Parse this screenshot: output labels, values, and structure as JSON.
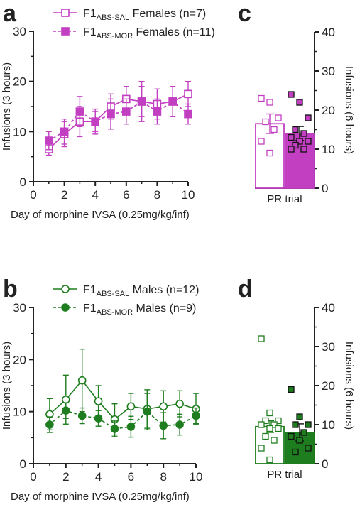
{
  "figure": {
    "panel_letters": [
      "a",
      "b",
      "c",
      "d"
    ]
  },
  "chart_data": [
    {
      "id": "a",
      "type": "line",
      "xlabel": "Day of morphine IVSA (0.25mg/kg/inf)",
      "ylabel": "Infusions (3 hours)",
      "xlim": [
        0,
        10
      ],
      "ylim": [
        0,
        30
      ],
      "x_ticks": [
        0,
        2,
        4,
        6,
        8,
        10
      ],
      "y_ticks": [
        0,
        10,
        20,
        30
      ],
      "legend_position": "top-left",
      "x": [
        1,
        2,
        3,
        4,
        5,
        6,
        7,
        8,
        9,
        10
      ],
      "series": [
        {
          "name": "F1ABS-SAL Females (n=7)",
          "name_parts": [
            "F1",
            "ABS-SAL",
            " Females (n=7)"
          ],
          "color": "#c23fc2",
          "marker": "open-square",
          "line": "solid",
          "values": [
            6.5,
            9.5,
            12,
            12,
            15,
            16.5,
            16,
            15.5,
            16,
            17.5
          ],
          "errors": [
            1.2,
            2.5,
            3,
            2.5,
            2.5,
            2.5,
            4,
            3,
            3,
            2.5
          ]
        },
        {
          "name": "F1ABS-MOR Females (n=11)",
          "name_parts": [
            "F1",
            "ABS-MOR",
            " Females (n=11)"
          ],
          "color": "#c23fc2",
          "marker": "filled-square",
          "line": "dashed",
          "values": [
            8.2,
            10,
            14,
            12,
            13.5,
            14,
            16,
            14,
            16,
            13.5
          ],
          "errors": [
            1.8,
            2.5,
            3,
            2,
            3,
            2.5,
            3,
            2.5,
            3,
            2
          ]
        }
      ]
    },
    {
      "id": "b",
      "type": "line",
      "xlabel": "Day of morphine IVSA (0.25mg/kg/inf)",
      "ylabel": "Infusions (3 hours)",
      "xlim": [
        0,
        10
      ],
      "ylim": [
        0,
        30
      ],
      "x_ticks": [
        0,
        2,
        4,
        6,
        8,
        10
      ],
      "y_ticks": [
        0,
        10,
        20,
        30
      ],
      "legend_position": "top-left",
      "x": [
        1,
        2,
        3,
        4,
        5,
        6,
        7,
        8,
        9,
        10
      ],
      "series": [
        {
          "name": "F1ABS-SAL Males (n=12)",
          "name_parts": [
            "F1",
            "ABS-SAL",
            " Males (n=12)"
          ],
          "color": "#1e7d1e",
          "marker": "open-circle",
          "line": "solid",
          "values": [
            9.5,
            12.3,
            16,
            12,
            8.5,
            11,
            10.5,
            11,
            11.5,
            10.5
          ],
          "errors": [
            3,
            4.7,
            6,
            3,
            3,
            2.5,
            3.7,
            3,
            2.5,
            3
          ]
        },
        {
          "name": "F1ABS-MOR Males (n=9)",
          "name_parts": [
            "F1",
            "ABS-MOR",
            " Males (n=9)"
          ],
          "color": "#1e7d1e",
          "marker": "filled-circle",
          "line": "dashed",
          "values": [
            7.5,
            10.2,
            9.2,
            8.7,
            6.7,
            7.1,
            10,
            7.3,
            7.5,
            9.2
          ],
          "errors": [
            1.5,
            1.5,
            1.5,
            1.5,
            1.5,
            2,
            3.5,
            2.5,
            2,
            1.5
          ]
        }
      ]
    },
    {
      "id": "c",
      "type": "bar",
      "categories": [
        "PR trial"
      ],
      "ylabel": "Infusions (6 hours)",
      "ylim": [
        0,
        40
      ],
      "y_ticks": [
        0,
        10,
        20,
        30,
        40
      ],
      "axis_side": "right",
      "series": [
        {
          "name": "F1ABS-SAL Females",
          "color": "#c23fc2",
          "fill": "open",
          "mean": 16.5,
          "sem": 2.5,
          "points": [
            23,
            22,
            18,
            17,
            15,
            12,
            9
          ]
        },
        {
          "name": "F1ABS-MOR Females",
          "color": "#c23fc2",
          "fill": "filled",
          "mean": 14,
          "sem": 1.8,
          "points": [
            24,
            22,
            18,
            15,
            14,
            13,
            12,
            12,
            11,
            10,
            10
          ]
        }
      ]
    },
    {
      "id": "d",
      "type": "bar",
      "categories": [
        "PR trial"
      ],
      "ylabel": "Infusions (6 hours)",
      "ylim": [
        0,
        40
      ],
      "y_ticks": [
        0,
        10,
        20,
        30,
        40
      ],
      "axis_side": "right",
      "series": [
        {
          "name": "F1ABS-SAL Males",
          "color": "#1e7d1e",
          "fill": "open",
          "mean": 9.5,
          "sem": 1.5,
          "points": [
            32,
            13,
            11,
            11,
            10,
            10,
            9,
            9,
            7,
            6,
            4,
            1
          ]
        },
        {
          "name": "F1ABS-MOR Males",
          "color": "#1e7d1e",
          "fill": "filled",
          "mean": 8,
          "sem": 2.2,
          "points": [
            19,
            12,
            10,
            10,
            8,
            7,
            6,
            4,
            3
          ]
        }
      ]
    }
  ]
}
